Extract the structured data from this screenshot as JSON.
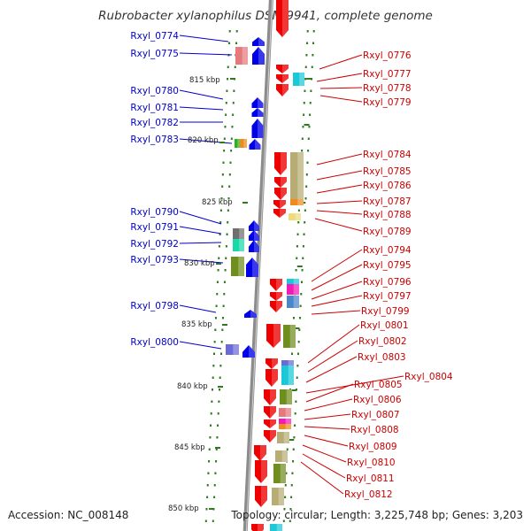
{
  "title": "Rubrobacter xylanophilus DSM 9941, complete genome",
  "footer": {
    "accession": "Accession: NC_008148",
    "topology": "Topology: circular; Length: 3,225,748 bp; Genes: 3,203"
  },
  "colors": {
    "backbone": "#8c8c8c",
    "tick": "#2f7a1f",
    "left_label": "#0000cc",
    "right_label": "#cc0000"
  },
  "kbp_markers": [
    "815 kbp",
    "820 kbp",
    "825 kbp",
    "830 kbp",
    "835 kbp",
    "840 kbp",
    "845 kbp",
    "850 kbp"
  ],
  "left_genes": [
    {
      "id": "Rxyl_0774",
      "color": "#0000e0"
    },
    {
      "id": "Rxyl_0775",
      "color": "#0000e0"
    },
    {
      "id": "Rxyl_0780",
      "color": "#0000e0"
    },
    {
      "id": "Rxyl_0781",
      "color": "#0000e0"
    },
    {
      "id": "Rxyl_0782",
      "color": "#0000e0"
    },
    {
      "id": "Rxyl_0783",
      "color": "#0000e0"
    },
    {
      "id": "Rxyl_0790",
      "color": "#0000e0"
    },
    {
      "id": "Rxyl_0791",
      "color": "#0000e0"
    },
    {
      "id": "Rxyl_0792",
      "color": "#0000e0"
    },
    {
      "id": "Rxyl_0793",
      "color": "#0000e0"
    },
    {
      "id": "Rxyl_0798",
      "color": "#0000e0"
    },
    {
      "id": "Rxyl_0800",
      "color": "#0000e0"
    }
  ],
  "right_genes": [
    {
      "id": "Rxyl_0776"
    },
    {
      "id": "Rxyl_0777"
    },
    {
      "id": "Rxyl_0778"
    },
    {
      "id": "Rxyl_0779"
    },
    {
      "id": "Rxyl_0784"
    },
    {
      "id": "Rxyl_0785"
    },
    {
      "id": "Rxyl_0786"
    },
    {
      "id": "Rxyl_0787"
    },
    {
      "id": "Rxyl_0788"
    },
    {
      "id": "Rxyl_0789"
    },
    {
      "id": "Rxyl_0794"
    },
    {
      "id": "Rxyl_0795"
    },
    {
      "id": "Rxyl_0796"
    },
    {
      "id": "Rxyl_0797"
    },
    {
      "id": "Rxyl_0799"
    },
    {
      "id": "Rxyl_0801"
    },
    {
      "id": "Rxyl_0802"
    },
    {
      "id": "Rxyl_0803"
    },
    {
      "id": "Rxyl_0804"
    },
    {
      "id": "Rxyl_0805"
    },
    {
      "id": "Rxyl_0806"
    },
    {
      "id": "Rxyl_0807"
    },
    {
      "id": "Rxyl_0808"
    },
    {
      "id": "Rxyl_0809"
    },
    {
      "id": "Rxyl_0810"
    },
    {
      "id": "Rxyl_0811"
    },
    {
      "id": "Rxyl_0812"
    }
  ]
}
